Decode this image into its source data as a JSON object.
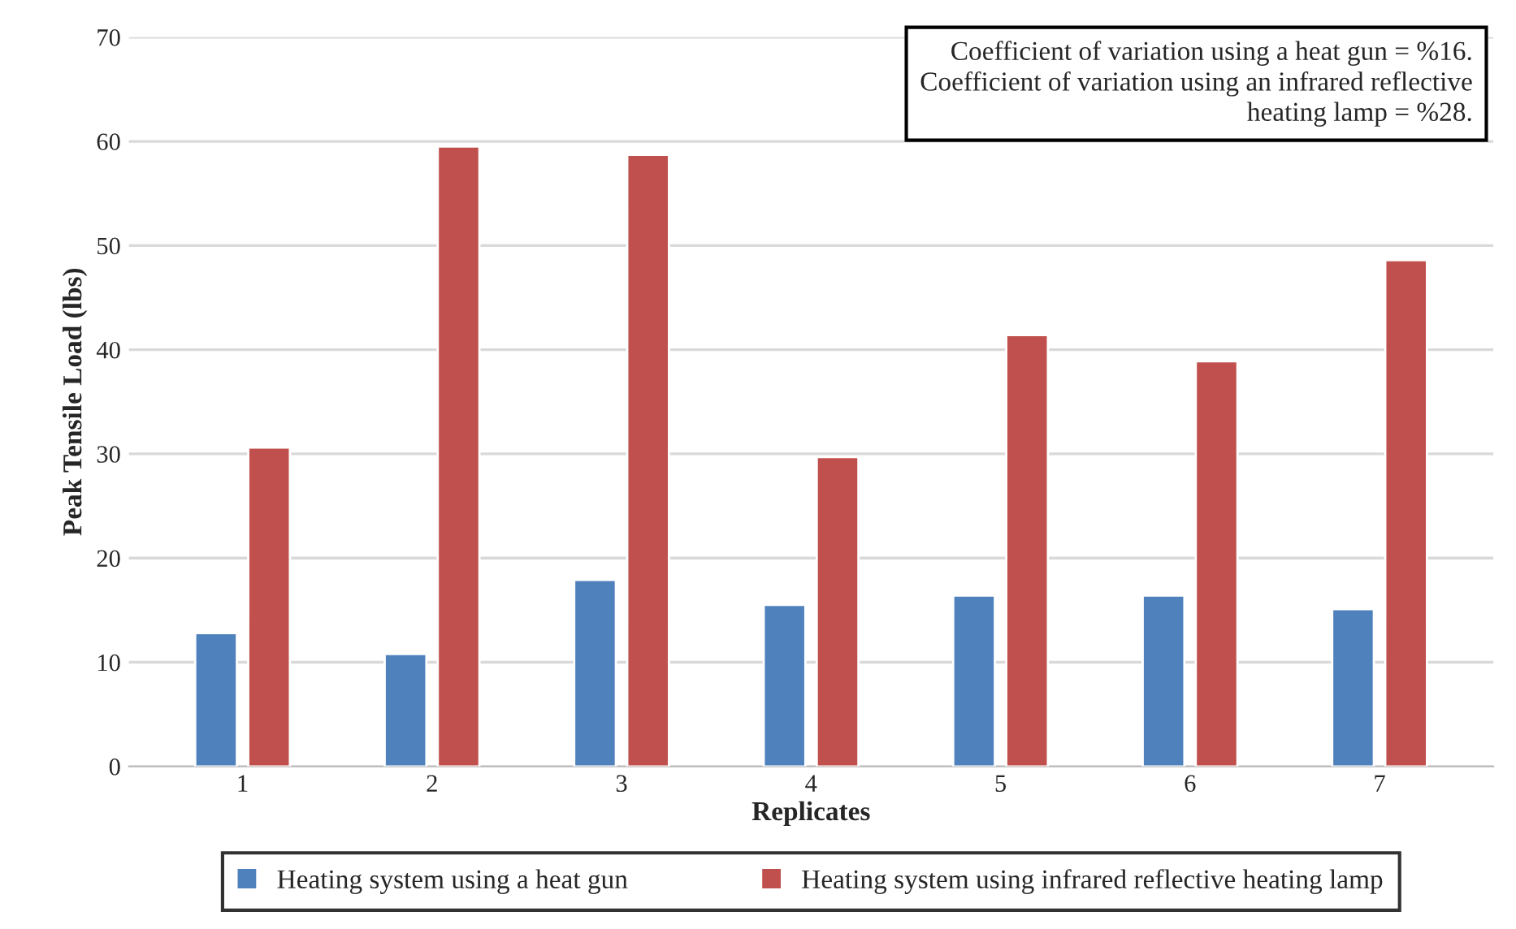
{
  "chart_data": {
    "type": "bar",
    "xlabel": "Replicates",
    "ylabel": "Peak Tensile Load (lbs)",
    "categories": [
      "1",
      "2",
      "3",
      "4",
      "5",
      "6",
      "7"
    ],
    "series": [
      {
        "name": "Heating system using a heat gun",
        "color": "#4f81bd",
        "values": [
          12.8,
          10.8,
          17.9,
          15.5,
          16.4,
          16.4,
          15.1
        ]
      },
      {
        "name": "Heating system using infrared reflective heating lamp",
        "color": "#c0504d",
        "values": [
          30.6,
          59.5,
          58.7,
          29.7,
          41.4,
          38.9,
          48.6
        ]
      }
    ],
    "ylim": [
      0,
      70
    ],
    "yticks": [
      0,
      10,
      20,
      30,
      40,
      50,
      60,
      70
    ],
    "grid": "y",
    "legend": "bottom",
    "annotations": [
      "Coefficient of variation using a heat gun = %16.\nCoefficient of variation using an infrared reflective\nheating lamp = %28."
    ]
  }
}
